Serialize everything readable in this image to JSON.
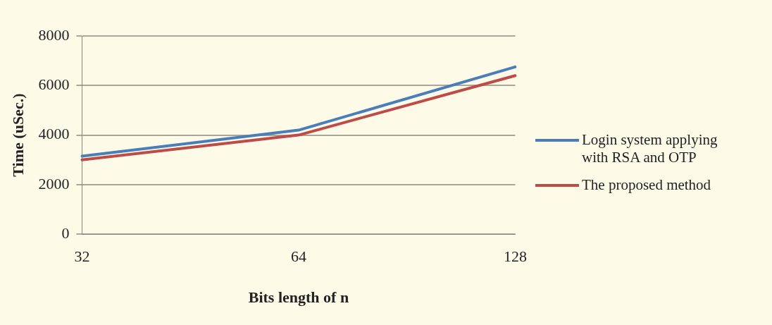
{
  "chart_data": {
    "type": "line",
    "xlabel": "Bits length of n",
    "ylabel": "Time (uSec.)",
    "categories": [
      "32",
      "64",
      "128"
    ],
    "series": [
      {
        "name": "Login system applying with RSA and OTP",
        "color": "#4a7ebb",
        "values": [
          3150,
          4200,
          6750
        ]
      },
      {
        "name": "The proposed method",
        "color": "#be4b48",
        "values": [
          3000,
          4000,
          6400
        ]
      }
    ],
    "ylim": [
      0,
      8000
    ],
    "yticks": [
      0,
      2000,
      4000,
      6000,
      8000
    ],
    "grid": "y",
    "legend": "right",
    "marker": "none"
  }
}
